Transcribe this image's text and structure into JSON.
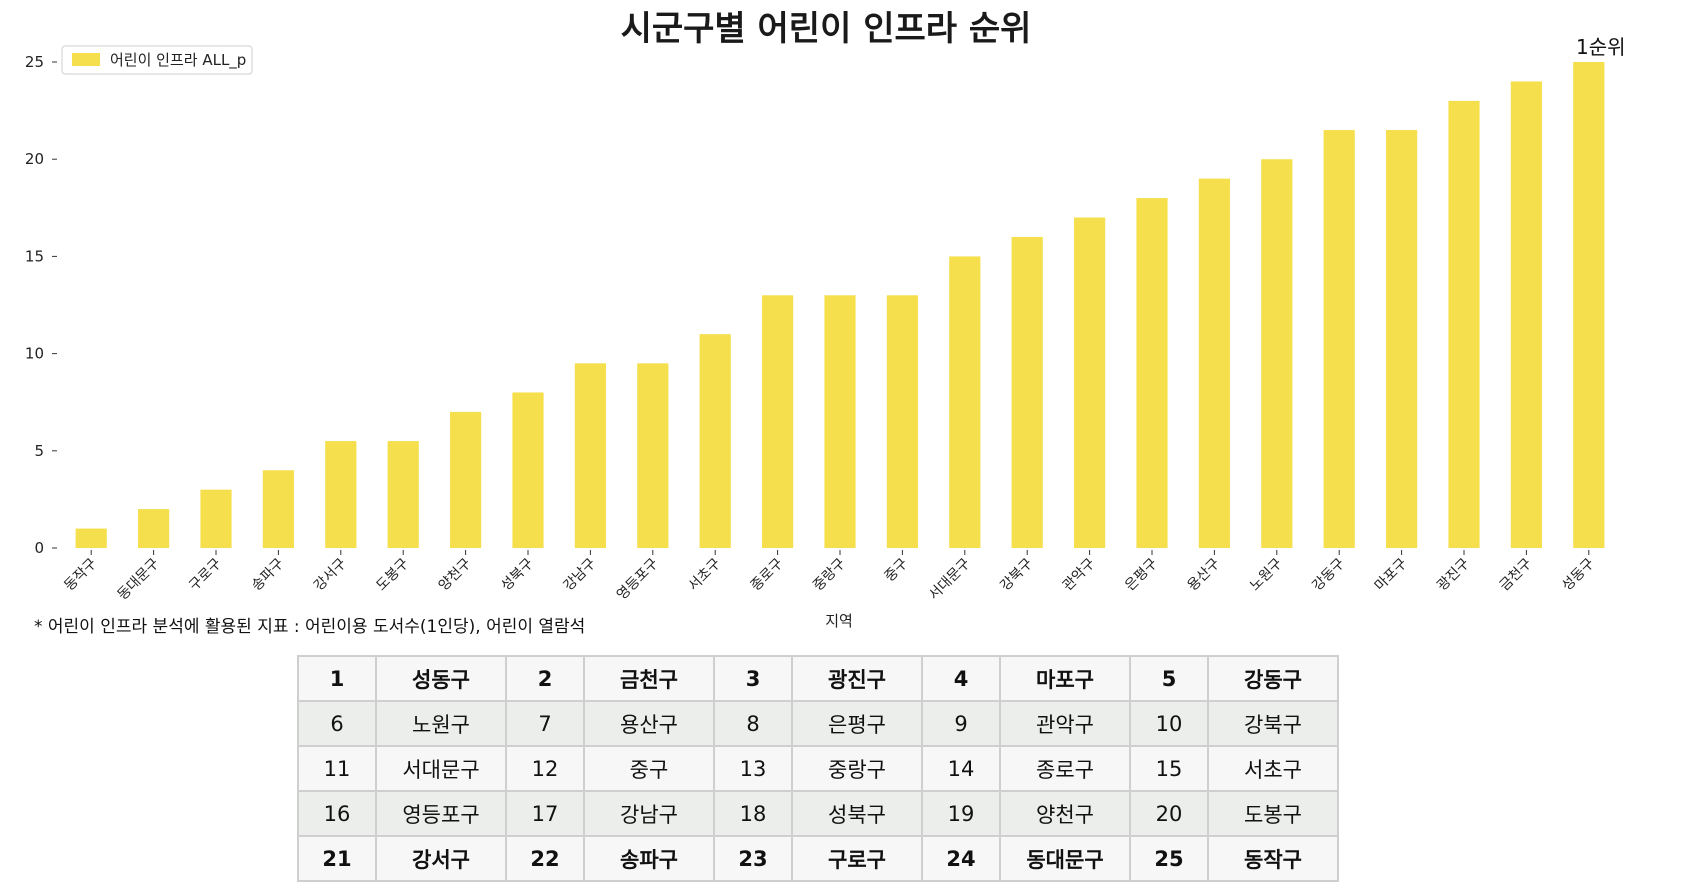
{
  "chart_data": {
    "type": "bar",
    "title": "시군구별 어린이 인프라 순위",
    "xlabel": "지역",
    "ylabel": "",
    "ylim": [
      0,
      25
    ],
    "yticks": [
      0,
      5,
      10,
      15,
      20,
      25
    ],
    "categories": [
      "동작구",
      "동대문구",
      "구로구",
      "송파구",
      "강서구",
      "도봉구",
      "양천구",
      "성북구",
      "강남구",
      "영등포구",
      "서초구",
      "종로구",
      "중랑구",
      "중구",
      "서대문구",
      "강북구",
      "관악구",
      "은평구",
      "용산구",
      "노원구",
      "강동구",
      "마포구",
      "광진구",
      "금천구",
      "성동구"
    ],
    "series": [
      {
        "name": "어린이 인프라 ALL_p",
        "values": [
          1,
          2,
          3,
          4,
          5.5,
          5.5,
          7,
          8,
          9.5,
          9.5,
          11,
          13,
          13,
          13,
          15,
          16,
          17,
          18,
          19,
          20,
          21.5,
          21.5,
          23,
          24,
          25
        ]
      }
    ],
    "bar_color": "#f5df4d",
    "legend_position": "top-left",
    "grid": false,
    "annotation": "1순위"
  },
  "footnote": "* 어린이 인프라 분석에 활용된 지표 : 어린이용 도서수(1인당), 어린이 열람석",
  "rank_table": {
    "rows": [
      {
        "bold": true,
        "cells": [
          [
            "1",
            "성동구"
          ],
          [
            "2",
            "금천구"
          ],
          [
            "3",
            "광진구"
          ],
          [
            "4",
            "마포구"
          ],
          [
            "5",
            "강동구"
          ]
        ]
      },
      {
        "bold": false,
        "cells": [
          [
            "6",
            "노원구"
          ],
          [
            "7",
            "용산구"
          ],
          [
            "8",
            "은평구"
          ],
          [
            "9",
            "관악구"
          ],
          [
            "10",
            "강북구"
          ]
        ]
      },
      {
        "bold": false,
        "cells": [
          [
            "11",
            "서대문구"
          ],
          [
            "12",
            "중구"
          ],
          [
            "13",
            "중랑구"
          ],
          [
            "14",
            "종로구"
          ],
          [
            "15",
            "서초구"
          ]
        ]
      },
      {
        "bold": false,
        "cells": [
          [
            "16",
            "영등포구"
          ],
          [
            "17",
            "강남구"
          ],
          [
            "18",
            "성북구"
          ],
          [
            "19",
            "양천구"
          ],
          [
            "20",
            "도봉구"
          ]
        ]
      },
      {
        "bold": true,
        "cells": [
          [
            "21",
            "강서구"
          ],
          [
            "22",
            "송파구"
          ],
          [
            "23",
            "구로구"
          ],
          [
            "24",
            "동대문구"
          ],
          [
            "25",
            "동작구"
          ]
        ]
      }
    ]
  }
}
